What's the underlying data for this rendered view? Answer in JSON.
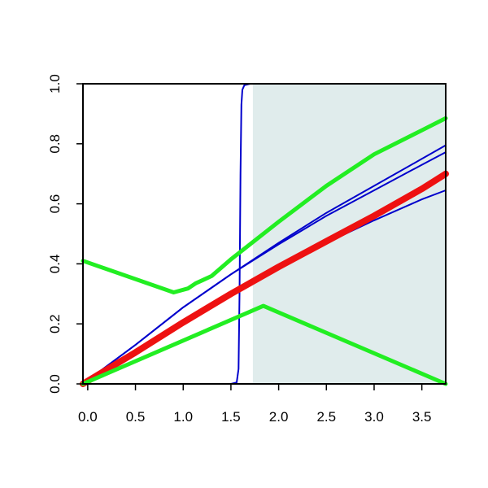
{
  "chart_data": {
    "type": "line",
    "title": "",
    "xlabel": "",
    "ylabel": "",
    "xlim": [
      -0.05,
      3.75
    ],
    "ylim": [
      0,
      1.0
    ],
    "grid": false,
    "legend": "none",
    "x_ticks": [
      "0.0",
      "0.5",
      "1.0",
      "1.5",
      "2.0",
      "2.5",
      "3.0",
      "3.5"
    ],
    "y_ticks": [
      "0.0",
      "0.2",
      "0.4",
      "0.6",
      "0.8",
      "1.0"
    ],
    "shaded_region": {
      "x_from": 1.73,
      "x_to": 3.75,
      "y_from": 0,
      "y_to": 1.0,
      "color": "#e0ecec"
    },
    "series": [
      {
        "color": "#0000cc",
        "width": 2,
        "points": [
          [
            -0.05,
            0.0
          ],
          [
            1.5,
            0.0
          ],
          [
            1.56,
            0.005
          ],
          [
            1.58,
            0.05
          ],
          [
            1.59,
            0.3
          ],
          [
            1.6,
            0.7
          ],
          [
            1.61,
            0.93
          ],
          [
            1.62,
            0.98
          ],
          [
            1.64,
            0.995
          ],
          [
            1.7,
            1.0
          ],
          [
            3.75,
            1.0
          ]
        ]
      },
      {
        "color": "#0000cc",
        "width": 2,
        "points": [
          [
            -0.05,
            0.0
          ],
          [
            0.5,
            0.105
          ],
          [
            1.0,
            0.205
          ],
          [
            1.5,
            0.3
          ],
          [
            2.0,
            0.39
          ],
          [
            2.5,
            0.47
          ],
          [
            3.0,
            0.545
          ],
          [
            3.5,
            0.615
          ],
          [
            3.75,
            0.645
          ]
        ]
      },
      {
        "color": "#0000cc",
        "width": 2,
        "points": [
          [
            -0.05,
            0.0
          ],
          [
            0.5,
            0.13
          ],
          [
            1.0,
            0.255
          ],
          [
            1.5,
            0.365
          ],
          [
            2.0,
            0.465
          ],
          [
            2.5,
            0.56
          ],
          [
            3.0,
            0.645
          ],
          [
            3.5,
            0.73
          ],
          [
            3.75,
            0.772
          ]
        ]
      },
      {
        "color": "#0000cc",
        "width": 2,
        "points": [
          [
            -0.05,
            0.0
          ],
          [
            0.5,
            0.13
          ],
          [
            1.0,
            0.255
          ],
          [
            1.5,
            0.365
          ],
          [
            2.0,
            0.47
          ],
          [
            2.5,
            0.57
          ],
          [
            3.0,
            0.66
          ],
          [
            3.5,
            0.75
          ],
          [
            3.75,
            0.795
          ]
        ]
      },
      {
        "color": "#ee1111",
        "width": 8,
        "points": [
          [
            -0.05,
            0.0
          ],
          [
            0.5,
            0.105
          ],
          [
            1.0,
            0.205
          ],
          [
            1.5,
            0.3
          ],
          [
            2.0,
            0.39
          ],
          [
            2.5,
            0.475
          ],
          [
            3.0,
            0.56
          ],
          [
            3.5,
            0.65
          ],
          [
            3.75,
            0.7
          ]
        ]
      },
      {
        "color": "#22ee22",
        "width": 5,
        "points": [
          [
            -0.05,
            0.41
          ],
          [
            0.9,
            0.305
          ],
          [
            1.05,
            0.318
          ],
          [
            1.13,
            0.335
          ],
          [
            1.2,
            0.345
          ],
          [
            1.3,
            0.36
          ],
          [
            1.5,
            0.415
          ],
          [
            2.0,
            0.54
          ],
          [
            2.5,
            0.66
          ],
          [
            3.0,
            0.765
          ],
          [
            3.5,
            0.845
          ],
          [
            3.75,
            0.885
          ]
        ]
      },
      {
        "color": "#22ee22",
        "width": 5,
        "points": [
          [
            -0.05,
            0.0
          ],
          [
            1.84,
            0.26
          ],
          [
            3.75,
            0.0
          ]
        ]
      }
    ]
  }
}
